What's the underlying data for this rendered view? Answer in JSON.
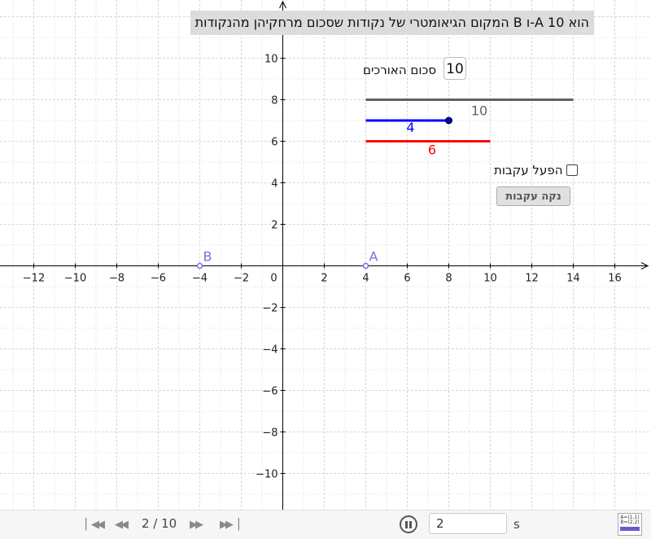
{
  "title": "הוא 10 A-ו B המקום הגיאומטרי של נקודות שסכום מרחקיהן מהנקודות",
  "controls": {
    "sum_label": "סכום האורכים",
    "sum_value": "10",
    "trace_label": "הפעל עקבות",
    "clear_label": "נקה עקבות"
  },
  "graph": {
    "x_ticks": [
      "−12",
      "−10",
      "−8",
      "−6",
      "−4",
      "−2",
      "0",
      "2",
      "4",
      "6",
      "8",
      "10",
      "12",
      "14",
      "16"
    ],
    "y_ticks": [
      "10",
      "8",
      "6",
      "4",
      "2",
      "−2",
      "−4",
      "−6",
      "−8",
      "−10"
    ],
    "points": [
      {
        "label": "A",
        "x": 4,
        "y": 0
      },
      {
        "label": "B",
        "x": -4,
        "y": 0
      }
    ],
    "segments": [
      {
        "label": "10",
        "color": "#616161",
        "y": 8,
        "x_start": 4,
        "x_end": 14
      },
      {
        "label": "4",
        "color": "#0000ff",
        "y": 7,
        "x_start": 4,
        "x_end": 8
      },
      {
        "label": "6",
        "color": "#ff0000",
        "y": 6,
        "x_start": 4,
        "x_end": 10
      }
    ],
    "colors": {
      "grid": "#d8d8d8",
      "axis": "#000000",
      "point": "#7b6fd6"
    }
  },
  "toolbar": {
    "step": "2 / 10",
    "speed_value": "2",
    "speed_unit": "s",
    "logo_text": "A=(1,1) B=(2,2)"
  }
}
